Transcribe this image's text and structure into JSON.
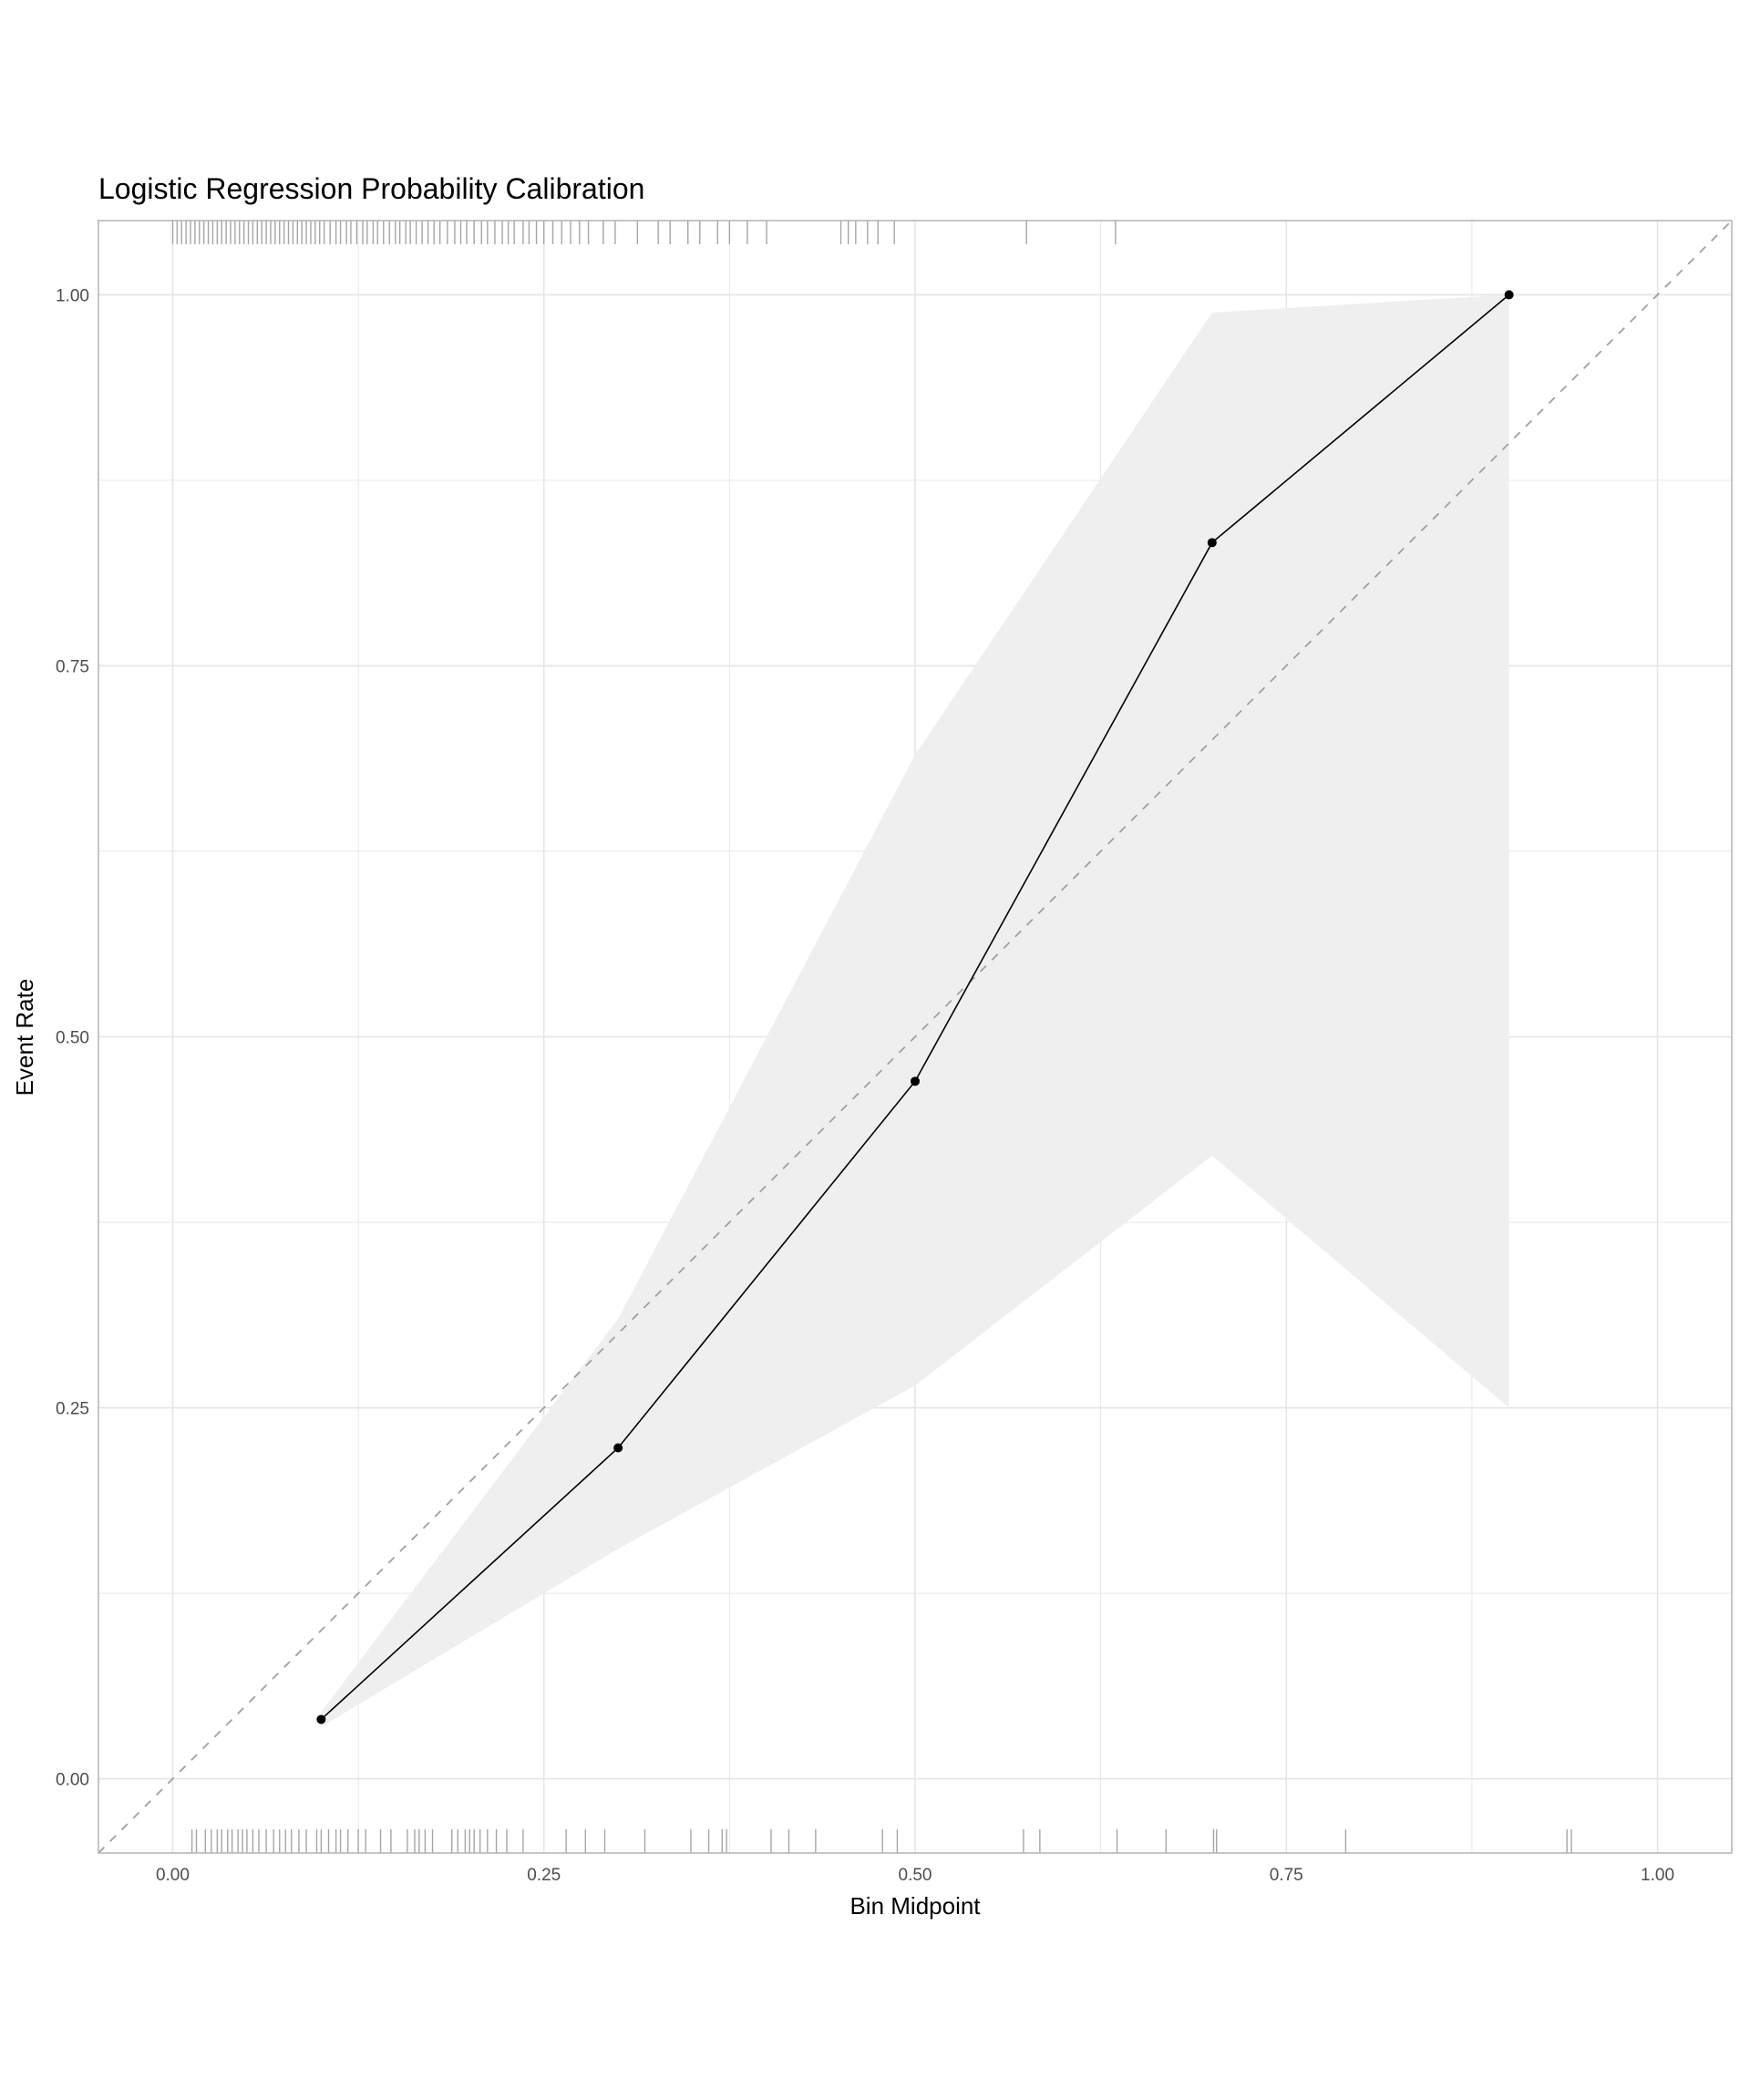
{
  "chart_data": {
    "type": "line",
    "title": "Logistic Regression Probability Calibration",
    "xlabel": "Bin Midpoint",
    "ylabel": "Event Rate",
    "xlim": [
      -0.05,
      1.05
    ],
    "ylim": [
      -0.05,
      1.05
    ],
    "x_ticks": [
      "0.00",
      "0.25",
      "0.50",
      "0.75",
      "1.00"
    ],
    "y_ticks": [
      "0.00",
      "0.25",
      "0.50",
      "0.75",
      "1.00"
    ],
    "grid": true,
    "points": [
      {
        "x": 0.1,
        "y": 0.04,
        "lower": 0.035,
        "upper": 0.045
      },
      {
        "x": 0.3,
        "y": 0.223,
        "lower": 0.155,
        "upper": 0.31
      },
      {
        "x": 0.5,
        "y": 0.47,
        "lower": 0.265,
        "upper": 0.69
      },
      {
        "x": 0.7,
        "y": 0.833,
        "lower": 0.42,
        "upper": 0.988
      },
      {
        "x": 0.9,
        "y": 1.0,
        "lower": 0.25,
        "upper": 1.0
      }
    ],
    "reference_line": {
      "slope": 1,
      "intercept": 0,
      "style": "dashed"
    },
    "rug_top": [
      0.0,
      0.003,
      0.006,
      0.009,
      0.012,
      0.015,
      0.018,
      0.021,
      0.024,
      0.027,
      0.03,
      0.033,
      0.036,
      0.039,
      0.042,
      0.045,
      0.048,
      0.051,
      0.054,
      0.057,
      0.06,
      0.063,
      0.066,
      0.069,
      0.072,
      0.075,
      0.078,
      0.081,
      0.084,
      0.087,
      0.09,
      0.093,
      0.096,
      0.099,
      0.102,
      0.106,
      0.11,
      0.113,
      0.117,
      0.12,
      0.124,
      0.128,
      0.131,
      0.135,
      0.138,
      0.142,
      0.146,
      0.15,
      0.153,
      0.157,
      0.16,
      0.164,
      0.168,
      0.172,
      0.176,
      0.18,
      0.185,
      0.19,
      0.194,
      0.198,
      0.203,
      0.208,
      0.212,
      0.217,
      0.222,
      0.226,
      0.23,
      0.236,
      0.24,
      0.245,
      0.25,
      0.256,
      0.262,
      0.268,
      0.274,
      0.28,
      0.29,
      0.298,
      0.313,
      0.327,
      0.335,
      0.347,
      0.355,
      0.367,
      0.375,
      0.387,
      0.4,
      0.45,
      0.455,
      0.46,
      0.468,
      0.475,
      0.486,
      0.575,
      0.635
    ],
    "rug_bottom": [
      0.013,
      0.016,
      0.022,
      0.026,
      0.03,
      0.033,
      0.037,
      0.04,
      0.044,
      0.047,
      0.05,
      0.054,
      0.058,
      0.063,
      0.068,
      0.072,
      0.076,
      0.08,
      0.085,
      0.09,
      0.097,
      0.1,
      0.105,
      0.11,
      0.113,
      0.118,
      0.125,
      0.13,
      0.14,
      0.147,
      0.158,
      0.163,
      0.166,
      0.17,
      0.175,
      0.188,
      0.192,
      0.197,
      0.2,
      0.203,
      0.207,
      0.212,
      0.218,
      0.225,
      0.236,
      0.265,
      0.278,
      0.291,
      0.318,
      0.349,
      0.361,
      0.37,
      0.373,
      0.403,
      0.415,
      0.433,
      0.478,
      0.488,
      0.573,
      0.584,
      0.636,
      0.669,
      0.701,
      0.703,
      0.79,
      0.939,
      0.942
    ],
    "colors": {
      "ribbon": "#efefef",
      "line": "#000000",
      "reference": "#a0a0a0",
      "rug": "#a6a6a6",
      "grid": "#e5e5e5",
      "border": "#b3b3b3"
    }
  }
}
